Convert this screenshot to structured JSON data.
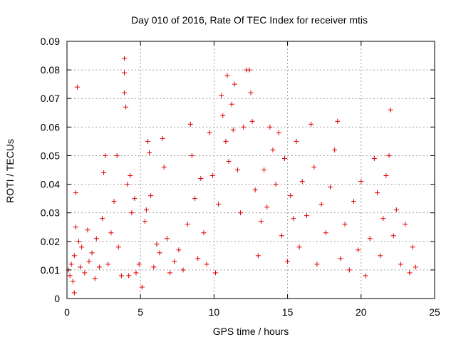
{
  "chart_data": {
    "type": "scatter",
    "title": "Day 010 of 2016, Rate Of TEC Index for receiver mtis",
    "xlabel": "GPS time / hours",
    "ylabel": "ROTI / TECUs",
    "xlim": [
      0,
      25
    ],
    "ylim": [
      0,
      0.09
    ],
    "grid": true,
    "marker": "plus",
    "color": "#e00000",
    "x_ticks": [
      0,
      5,
      10,
      15,
      20,
      25
    ],
    "x_tick_labels": [
      "0",
      "5",
      "10",
      "15",
      "20",
      "25"
    ],
    "y_ticks": [
      0,
      0.01,
      0.02,
      0.03,
      0.04,
      0.05,
      0.06,
      0.07,
      0.08,
      0.09
    ],
    "y_tick_labels": [
      "0",
      "0.01",
      "0.02",
      "0.03",
      "0.04",
      "0.05",
      "0.06",
      "0.07",
      "0.08",
      "0.09"
    ],
    "series": [
      {
        "name": "ROTI",
        "points": [
          [
            0.1,
            0.01
          ],
          [
            0.2,
            0.008
          ],
          [
            0.3,
            0.012
          ],
          [
            0.4,
            0.006
          ],
          [
            0.5,
            0.015
          ],
          [
            0.5,
            0.002
          ],
          [
            0.6,
            0.037
          ],
          [
            0.6,
            0.025
          ],
          [
            0.7,
            0.074
          ],
          [
            0.8,
            0.02
          ],
          [
            0.9,
            0.011
          ],
          [
            1.0,
            0.018
          ],
          [
            1.2,
            0.009
          ],
          [
            1.4,
            0.024
          ],
          [
            1.5,
            0.013
          ],
          [
            1.7,
            0.016
          ],
          [
            1.9,
            0.007
          ],
          [
            2.0,
            0.021
          ],
          [
            2.2,
            0.011
          ],
          [
            2.4,
            0.028
          ],
          [
            2.5,
            0.044
          ],
          [
            2.6,
            0.05
          ],
          [
            2.8,
            0.012
          ],
          [
            3.0,
            0.023
          ],
          [
            3.2,
            0.034
          ],
          [
            3.4,
            0.05
          ],
          [
            3.5,
            0.018
          ],
          [
            3.7,
            0.008
          ],
          [
            3.9,
            0.084
          ],
          [
            3.9,
            0.079
          ],
          [
            3.9,
            0.072
          ],
          [
            4.0,
            0.067
          ],
          [
            4.1,
            0.04
          ],
          [
            4.2,
            0.008
          ],
          [
            4.3,
            0.043
          ],
          [
            4.4,
            0.03
          ],
          [
            4.6,
            0.035
          ],
          [
            4.7,
            0.009
          ],
          [
            4.9,
            0.012
          ],
          [
            5.1,
            0.004
          ],
          [
            5.3,
            0.027
          ],
          [
            5.4,
            0.031
          ],
          [
            5.5,
            0.055
          ],
          [
            5.6,
            0.051
          ],
          [
            5.7,
            0.036
          ],
          [
            5.9,
            0.011
          ],
          [
            6.1,
            0.019
          ],
          [
            6.3,
            0.016
          ],
          [
            6.5,
            0.056
          ],
          [
            6.6,
            0.046
          ],
          [
            6.8,
            0.021
          ],
          [
            7.0,
            0.009
          ],
          [
            7.3,
            0.013
          ],
          [
            7.6,
            0.017
          ],
          [
            7.9,
            0.01
          ],
          [
            8.2,
            0.026
          ],
          [
            8.4,
            0.061
          ],
          [
            8.5,
            0.05
          ],
          [
            8.7,
            0.035
          ],
          [
            8.9,
            0.014
          ],
          [
            9.1,
            0.042
          ],
          [
            9.3,
            0.023
          ],
          [
            9.5,
            0.012
          ],
          [
            9.7,
            0.058
          ],
          [
            9.9,
            0.043
          ],
          [
            10.1,
            0.009
          ],
          [
            10.3,
            0.033
          ],
          [
            10.5,
            0.071
          ],
          [
            10.6,
            0.064
          ],
          [
            10.8,
            0.055
          ],
          [
            10.9,
            0.078
          ],
          [
            11.0,
            0.048
          ],
          [
            11.2,
            0.068
          ],
          [
            11.3,
            0.059
          ],
          [
            11.4,
            0.075
          ],
          [
            11.6,
            0.045
          ],
          [
            11.8,
            0.03
          ],
          [
            12.0,
            0.06
          ],
          [
            12.2,
            0.08
          ],
          [
            12.4,
            0.08
          ],
          [
            12.5,
            0.072
          ],
          [
            12.6,
            0.062
          ],
          [
            12.8,
            0.038
          ],
          [
            13.0,
            0.015
          ],
          [
            13.2,
            0.027
          ],
          [
            13.4,
            0.045
          ],
          [
            13.6,
            0.032
          ],
          [
            13.8,
            0.06
          ],
          [
            14.0,
            0.052
          ],
          [
            14.2,
            0.04
          ],
          [
            14.4,
            0.058
          ],
          [
            14.6,
            0.022
          ],
          [
            14.8,
            0.049
          ],
          [
            15.0,
            0.013
          ],
          [
            15.2,
            0.036
          ],
          [
            15.4,
            0.028
          ],
          [
            15.6,
            0.055
          ],
          [
            15.8,
            0.018
          ],
          [
            16.0,
            0.041
          ],
          [
            16.3,
            0.029
          ],
          [
            16.6,
            0.061
          ],
          [
            16.8,
            0.046
          ],
          [
            17.0,
            0.012
          ],
          [
            17.3,
            0.033
          ],
          [
            17.6,
            0.023
          ],
          [
            17.9,
            0.039
          ],
          [
            18.2,
            0.052
          ],
          [
            18.4,
            0.062
          ],
          [
            18.6,
            0.014
          ],
          [
            18.9,
            0.026
          ],
          [
            19.2,
            0.01
          ],
          [
            19.5,
            0.034
          ],
          [
            19.8,
            0.017
          ],
          [
            20.0,
            0.041
          ],
          [
            20.3,
            0.008
          ],
          [
            20.6,
            0.021
          ],
          [
            20.9,
            0.049
          ],
          [
            21.1,
            0.037
          ],
          [
            21.3,
            0.015
          ],
          [
            21.5,
            0.028
          ],
          [
            21.7,
            0.043
          ],
          [
            21.9,
            0.05
          ],
          [
            22.0,
            0.066
          ],
          [
            22.2,
            0.022
          ],
          [
            22.4,
            0.031
          ],
          [
            22.7,
            0.012
          ],
          [
            23.0,
            0.026
          ],
          [
            23.3,
            0.009
          ],
          [
            23.5,
            0.018
          ],
          [
            23.7,
            0.011
          ]
        ]
      }
    ]
  }
}
